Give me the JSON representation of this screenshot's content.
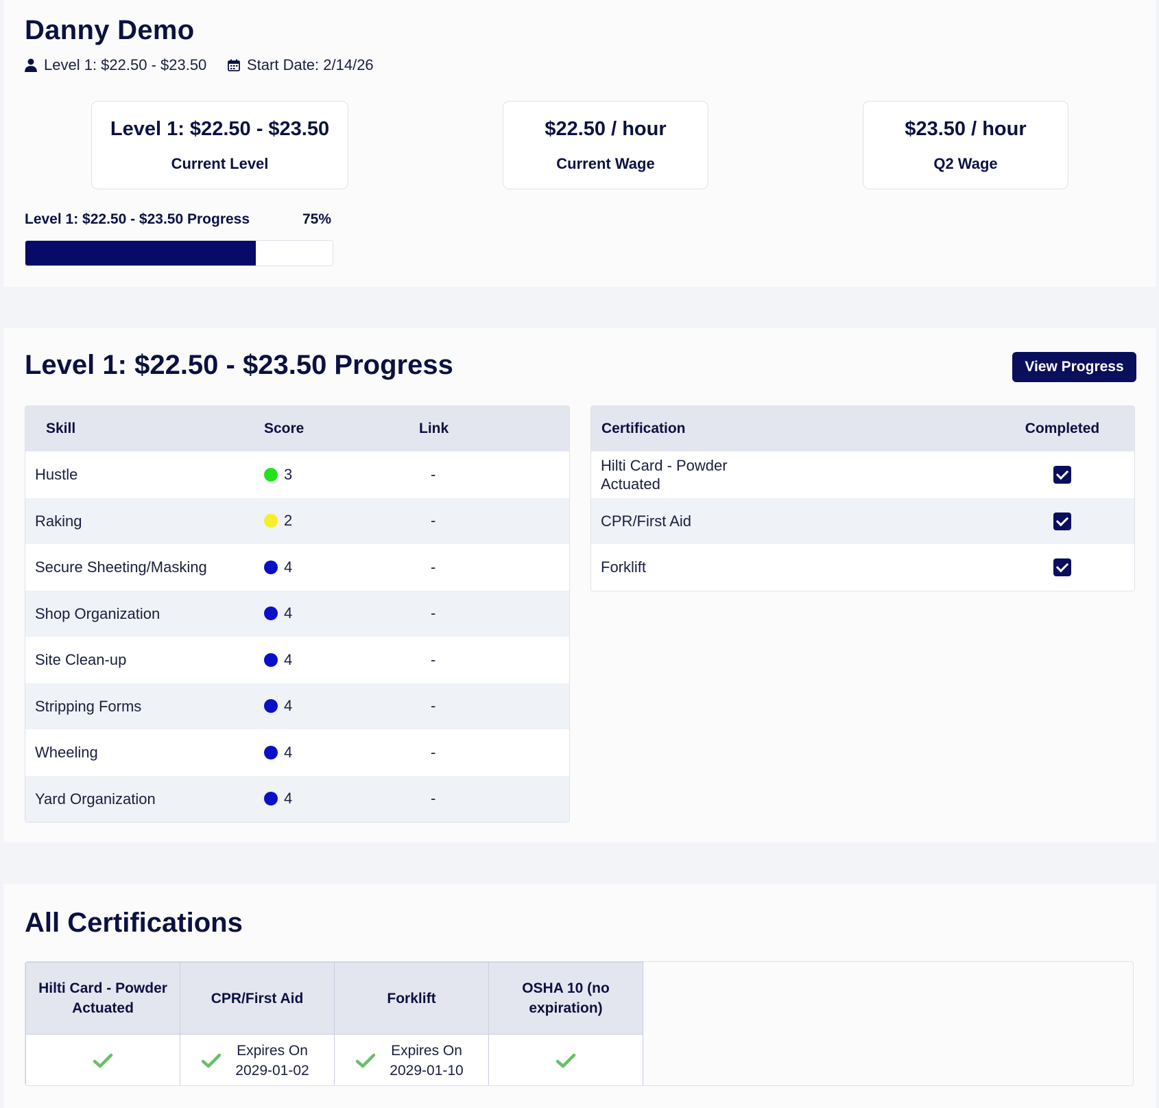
{
  "employee": {
    "name": "Danny Demo",
    "level_meta": "Level 1: $22.50 - $23.50",
    "start_date": "Start Date: 2/14/26"
  },
  "cards": {
    "level": {
      "value": "Level 1: $22.50 - $23.50",
      "label": "Current Level"
    },
    "current_wage": {
      "value": "$22.50 / hour",
      "label": "Current Wage"
    },
    "q2_wage": {
      "value": "$23.50 / hour",
      "label": "Q2 Wage"
    }
  },
  "progress": {
    "label": "Level 1: $22.50 - $23.50 Progress",
    "percent_text": "75%",
    "fraction": 0.75,
    "fill_color": "#070a66"
  },
  "level_progress": {
    "title": "Level 1: $22.50 - $23.50 Progress",
    "button": "View Progress",
    "skills_table": {
      "headers": [
        "Skill",
        "Score",
        "Link"
      ],
      "rows": [
        {
          "skill": "Hustle",
          "score": "3",
          "color": "#22e21c",
          "link": "-"
        },
        {
          "skill": "Raking",
          "score": "2",
          "color": "#f6ee2a",
          "link": "-"
        },
        {
          "skill": "Secure Sheeting/Masking",
          "score": "4",
          "color": "#0a0fc8",
          "link": "-"
        },
        {
          "skill": "Shop Organization",
          "score": "4",
          "color": "#0a0fc8",
          "link": "-"
        },
        {
          "skill": "Site Clean-up",
          "score": "4",
          "color": "#0a0fc8",
          "link": "-"
        },
        {
          "skill": "Stripping Forms",
          "score": "4",
          "color": "#0a0fc8",
          "link": "-"
        },
        {
          "skill": "Wheeling",
          "score": "4",
          "color": "#0a0fc8",
          "link": "-"
        },
        {
          "skill": "Yard Organization",
          "score": "4",
          "color": "#0a0fc8",
          "link": "-"
        }
      ]
    },
    "cert_table": {
      "headers": [
        "Certification",
        "Completed"
      ],
      "rows": [
        {
          "name": "Hilti Card - Powder Actuated",
          "completed": true
        },
        {
          "name": "CPR/First Aid",
          "completed": true
        },
        {
          "name": "Forklift",
          "completed": true
        }
      ]
    }
  },
  "all_certifications": {
    "title": "All Certifications",
    "columns": [
      {
        "header": "Hilti Card - Powder Actuated",
        "status": ""
      },
      {
        "header": "CPR/First Aid",
        "status": "Expires On 2029-01-02"
      },
      {
        "header": "Forklift",
        "status": "Expires On 2029-01-10"
      },
      {
        "header": "OSHA 10 (no expiration)",
        "status": ""
      }
    ],
    "check_color": "#6abf69"
  }
}
